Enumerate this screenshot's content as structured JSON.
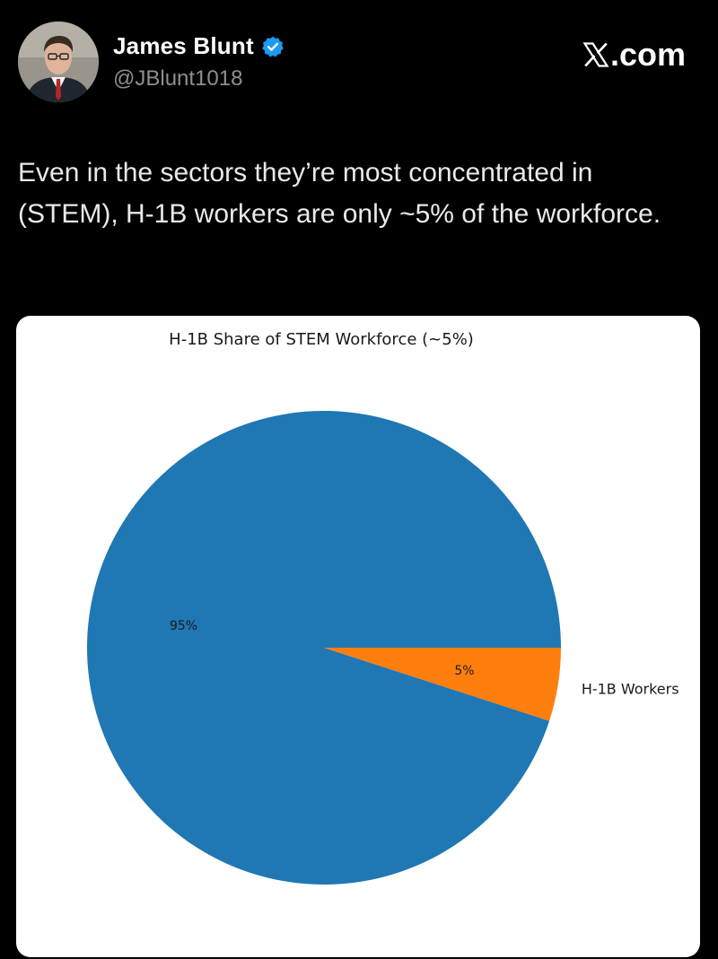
{
  "author": {
    "name": "James Blunt",
    "handle": "@JBlunt1018",
    "verified_icon": "verified-badge-icon",
    "verified_color": "#1d9bf0"
  },
  "brand": {
    "label": ".com",
    "icon": "x-logo-icon"
  },
  "tweet": {
    "text": "Even in the sectors they’re most concentrated in (STEM), H-1B workers are only ~5% of the workforce."
  },
  "chart_data": {
    "type": "pie",
    "title": "H-1B Share of STEM Workforce (~5%)",
    "categories": [
      "",
      "H-1B Workers"
    ],
    "values": [
      95,
      5
    ],
    "autopct_labels": [
      "95%",
      "5%"
    ],
    "colors": [
      "#1f77b4",
      "#ff7f0e"
    ],
    "start_angle_deg": 0,
    "legend": "none"
  }
}
